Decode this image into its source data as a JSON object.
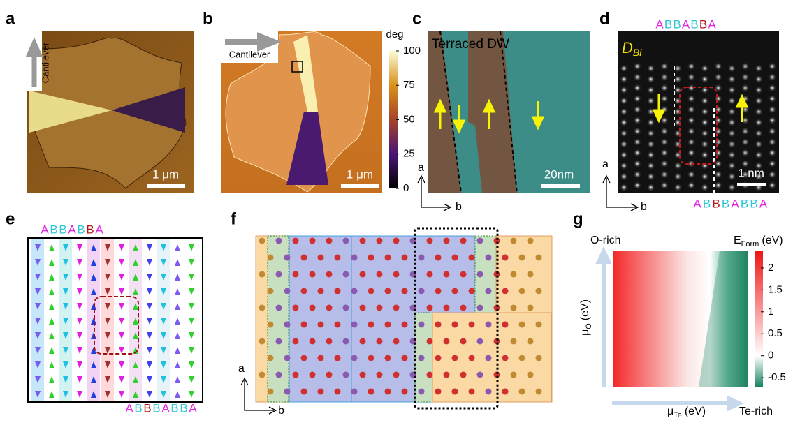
{
  "panels": {
    "a": {
      "label": "a",
      "cantilever": "Cantilever",
      "scale": "1 μm"
    },
    "b": {
      "label": "b",
      "cantilever": "Cantilever",
      "scale": "1 μm",
      "colorbar": {
        "title": "deg",
        "lim": [
          0,
          100
        ],
        "ticks": [
          0,
          25,
          50,
          75,
          100
        ]
      }
    },
    "c": {
      "label": "c",
      "title": "Terraced DW",
      "scale": "20nm",
      "axis_a": "a",
      "axis_b": "b"
    },
    "d": {
      "label": "d",
      "tag": "D",
      "tag_sub": "Bi",
      "scale": "1 nm",
      "axis_a": "a",
      "axis_b": "b",
      "top": [
        {
          "text": "A",
          "color": "#e524e5"
        },
        {
          "text": "B",
          "color": "#2fc6d6"
        },
        {
          "text": "B",
          "color": "#2fc6d6"
        },
        {
          "text": "A",
          "color": "#e524e5"
        },
        {
          "text": "B",
          "color": "#2fc6d6"
        },
        {
          "text": "B",
          "color": "#b3161a"
        },
        {
          "text": "A",
          "color": "#e524e5"
        }
      ],
      "bottom": [
        {
          "text": "A",
          "color": "#e524e5"
        },
        {
          "text": "B",
          "color": "#2fc6d6"
        },
        {
          "text": "B",
          "color": "#b3161a"
        },
        {
          "text": "B",
          "color": "#2fc6d6"
        },
        {
          "text": "A",
          "color": "#e524e5"
        },
        {
          "text": "B",
          "color": "#2fc6d6"
        },
        {
          "text": "B",
          "color": "#2fc6d6"
        },
        {
          "text": "A",
          "color": "#e524e5"
        }
      ]
    },
    "e": {
      "label": "e",
      "top": [
        {
          "text": "A",
          "color": "#e524e5"
        },
        {
          "text": "B",
          "color": "#2fc6d6"
        },
        {
          "text": "B",
          "color": "#2fc6d6"
        },
        {
          "text": "A",
          "color": "#e524e5"
        },
        {
          "text": "B",
          "color": "#2fc6d6"
        },
        {
          "text": "B",
          "color": "#b3161a"
        },
        {
          "text": "A",
          "color": "#e524e5"
        }
      ],
      "bottom": [
        {
          "text": "A",
          "color": "#e524e5"
        },
        {
          "text": "B",
          "color": "#2fc6d6"
        },
        {
          "text": "B",
          "color": "#b3161a"
        },
        {
          "text": "B",
          "color": "#2fc6d6"
        },
        {
          "text": "A",
          "color": "#e524e5"
        },
        {
          "text": "B",
          "color": "#2fc6d6"
        },
        {
          "text": "B",
          "color": "#2fc6d6"
        },
        {
          "text": "A",
          "color": "#e524e5"
        }
      ]
    },
    "f": {
      "label": "f",
      "axis_a": "a",
      "axis_b": "b"
    },
    "g": {
      "label": "g",
      "top_left": "O-rich",
      "bottom_right": "Te-rich",
      "cbar_title": "E",
      "cbar_sub": "Form",
      "cbar_unit": "(eV)",
      "y_symbol": "μ",
      "y_sub": "O",
      "y_unit": "(eV)",
      "x_symbol": "μ",
      "x_sub": "Te",
      "x_unit": "(eV)",
      "colorbar": {
        "lim": [
          -0.72,
          2.38
        ],
        "ticks": [
          -0.5,
          0,
          0.5,
          1,
          1.5,
          2
        ]
      }
    }
  }
}
